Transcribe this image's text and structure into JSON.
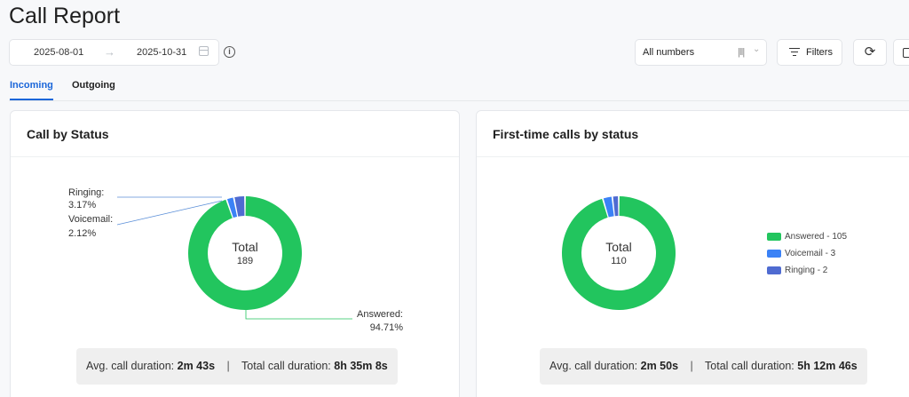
{
  "page": {
    "title": "Call Report"
  },
  "date_range": {
    "start": "2025-08-01",
    "arrow": "→",
    "end": "2025-10-31"
  },
  "info_icon": "i",
  "numbers_select": {
    "value": "All numbers",
    "sep": "|‖|",
    "chevron": "⌄"
  },
  "filters": {
    "label": "Filters"
  },
  "refresh": {
    "glyph": "⟳"
  },
  "tabs": [
    {
      "label": "Incoming",
      "active": true
    },
    {
      "label": "Outgoing",
      "active": false
    }
  ],
  "colors": {
    "answered": "#22c55e",
    "voicemail": "#3b82f6",
    "ringing": "#4f6bd1"
  },
  "card1": {
    "title": "Call by Status",
    "total_label": "Total",
    "total_value": "189",
    "labels": {
      "ringing": "Ringing:",
      "ringing_pct": "3.17%",
      "voicemail": "Voicemail:",
      "voicemail_pct": "2.12%",
      "answered": "Answered:",
      "answered_pct": "94.71%"
    },
    "summary": {
      "avg_label": "Avg. call duration:",
      "avg_value": "2m 43s",
      "sep": "|",
      "total_label": "Total call duration:",
      "total_value": "8h 35m 8s"
    }
  },
  "card2": {
    "title": "First-time calls by status",
    "total_label": "Total",
    "total_value": "110",
    "legend": [
      {
        "label": "Answered - 105",
        "color": "#22c55e"
      },
      {
        "label": "Voicemail - 3",
        "color": "#3b82f6"
      },
      {
        "label": "Ringing - 2",
        "color": "#4f6bd1"
      }
    ],
    "summary": {
      "avg_label": "Avg. call duration:",
      "avg_value": "2m 50s",
      "sep": "|",
      "total_label": "Total call duration:",
      "total_value": "5h 12m 46s"
    }
  },
  "chart_data": [
    {
      "type": "pie",
      "title": "Call by Status",
      "center_label": "Total",
      "total": 189,
      "slices": [
        {
          "name": "Answered",
          "value": 94.71
        },
        {
          "name": "Voicemail",
          "value": 2.12
        },
        {
          "name": "Ringing",
          "value": 3.17
        }
      ]
    },
    {
      "type": "pie",
      "title": "First-time calls by status",
      "center_label": "Total",
      "total": 110,
      "slices": [
        {
          "name": "Answered",
          "value": 105
        },
        {
          "name": "Voicemail",
          "value": 3
        },
        {
          "name": "Ringing",
          "value": 2
        }
      ],
      "legend_position": "right"
    }
  ]
}
